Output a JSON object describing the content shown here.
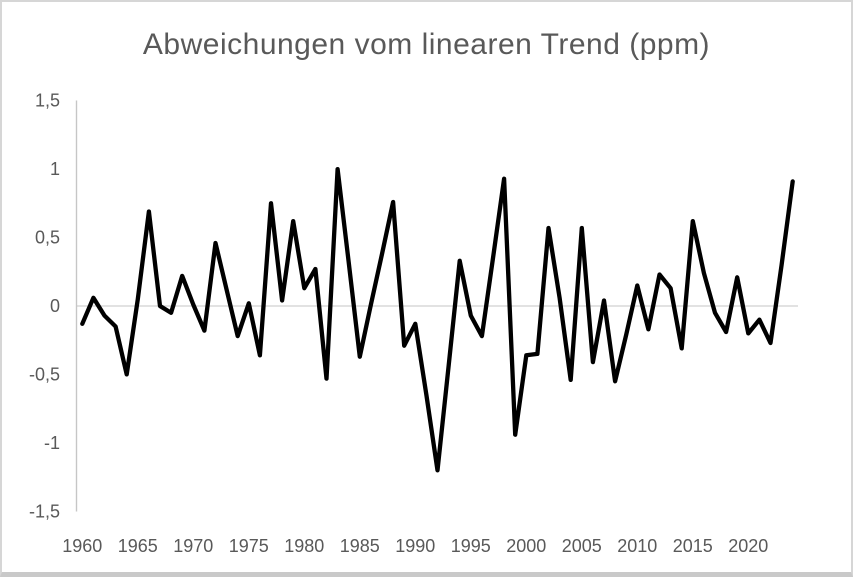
{
  "title": "Abweichungen vom linearen Trend (ppm)",
  "colors": {
    "line": "#000000",
    "text": "#595959",
    "zero_gridline": "#d9d9d9",
    "axis_line": "#c6c6c6",
    "background": "#ffffff",
    "border": "#c9c9c9"
  },
  "chart_data": {
    "type": "line",
    "title": "Abweichungen vom linearen Trend (ppm)",
    "xlabel": "",
    "ylabel": "",
    "ylim": [
      -1.5,
      1.5
    ],
    "grid": "zero-line-only",
    "legend": "none",
    "decimal_separator": "comma",
    "y_tick_labels": [
      "1,5",
      "1",
      "0,5",
      "0",
      "-0,5",
      "-1",
      "-1,5"
    ],
    "y_tick_values": [
      1.5,
      1,
      0.5,
      0,
      -0.5,
      -1,
      -1.5
    ],
    "x_tick_labels": [
      "1960",
      "1965",
      "1970",
      "1975",
      "1980",
      "1985",
      "1990",
      "1995",
      "2000",
      "2005",
      "2010",
      "2015",
      "2020"
    ],
    "x_tick_years": [
      1960,
      1965,
      1970,
      1975,
      1980,
      1985,
      1990,
      1995,
      2000,
      2005,
      2010,
      2015,
      2020
    ],
    "x": [
      1960,
      1961,
      1962,
      1963,
      1964,
      1965,
      1966,
      1967,
      1968,
      1969,
      1970,
      1971,
      1972,
      1973,
      1974,
      1975,
      1976,
      1977,
      1978,
      1979,
      1980,
      1981,
      1982,
      1983,
      1984,
      1985,
      1986,
      1987,
      1988,
      1989,
      1990,
      1991,
      1992,
      1993,
      1994,
      1995,
      1996,
      1997,
      1998,
      1999,
      2000,
      2001,
      2002,
      2003,
      2004,
      2005,
      2006,
      2007,
      2008,
      2009,
      2010,
      2011,
      2012,
      2013,
      2014,
      2015,
      2016,
      2017,
      2018,
      2019,
      2020,
      2021,
      2022,
      2023,
      2024
    ],
    "values": [
      -0.13,
      0.06,
      -0.07,
      -0.15,
      -0.5,
      0.05,
      0.69,
      0.0,
      -0.05,
      0.22,
      0.01,
      -0.18,
      0.46,
      0.12,
      -0.22,
      0.02,
      -0.36,
      0.75,
      0.04,
      0.62,
      0.13,
      0.27,
      -0.53,
      1.0,
      0.32,
      -0.37,
      0.01,
      0.38,
      0.76,
      -0.29,
      -0.13,
      -0.65,
      -1.2,
      -0.44,
      0.33,
      -0.07,
      -0.22,
      0.35,
      0.93,
      -0.94,
      -0.36,
      -0.35,
      0.57,
      0.06,
      -0.54,
      0.57,
      -0.41,
      0.04,
      -0.55,
      -0.21,
      0.15,
      -0.17,
      0.23,
      0.13,
      -0.31,
      0.62,
      0.24,
      -0.05,
      -0.19,
      0.21,
      -0.2,
      -0.1,
      -0.27,
      0.3,
      0.91
    ]
  }
}
